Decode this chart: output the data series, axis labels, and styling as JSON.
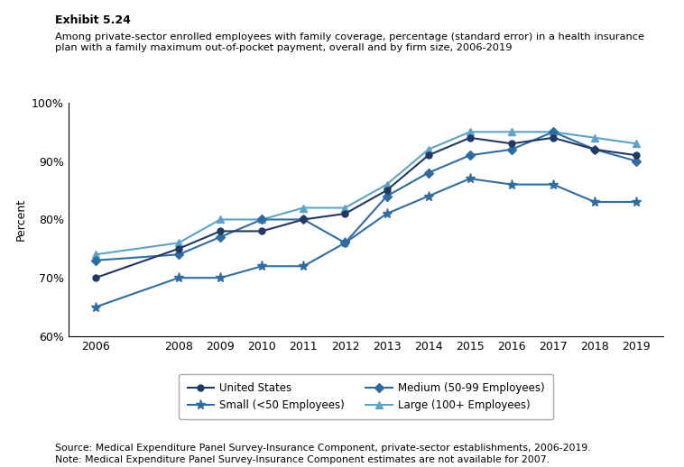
{
  "title_exhibit": "Exhibit 5.24",
  "title_main": "Among private-sector enrolled employees with family coverage, percentage (standard error) in a health insurance\nplan with a family maximum out-of-pocket payment, overall and by firm size, 2006-2019",
  "xlabel": "",
  "ylabel": "Percent",
  "ylim": [
    60,
    100
  ],
  "yticks": [
    60,
    70,
    80,
    90,
    100
  ],
  "ytick_labels": [
    "60%",
    "70%",
    "80%",
    "90%",
    "100%"
  ],
  "years": [
    2006,
    2008,
    2009,
    2010,
    2011,
    2012,
    2013,
    2014,
    2015,
    2016,
    2017,
    2018,
    2019
  ],
  "united_states": [
    70,
    75,
    78,
    78,
    80,
    81,
    85,
    91,
    94,
    93,
    94,
    92,
    91
  ],
  "small": [
    65,
    70,
    70,
    72,
    72,
    76,
    81,
    84,
    87,
    86,
    86,
    83,
    83
  ],
  "medium": [
    73,
    74,
    77,
    80,
    80,
    76,
    84,
    88,
    91,
    92,
    95,
    92,
    90
  ],
  "large": [
    74,
    76,
    80,
    80,
    82,
    82,
    86,
    92,
    95,
    95,
    95,
    94,
    93
  ],
  "us_color": "#1a2e4a",
  "small_color": "#2e5f8a",
  "medium_color": "#2e5f8a",
  "large_color": "#5b9ab5",
  "source_text": "Source: Medical Expenditure Panel Survey-Insurance Component, private-sector establishments, 2006-2019.",
  "note_text": "Note: Medical Expenditure Panel Survey-Insurance Component estimates are not available for 2007.",
  "legend_entries": [
    "United States",
    "Small (<50 Employees)",
    "Medium (50-99 Employees)",
    "Large (100+ Employees)"
  ]
}
